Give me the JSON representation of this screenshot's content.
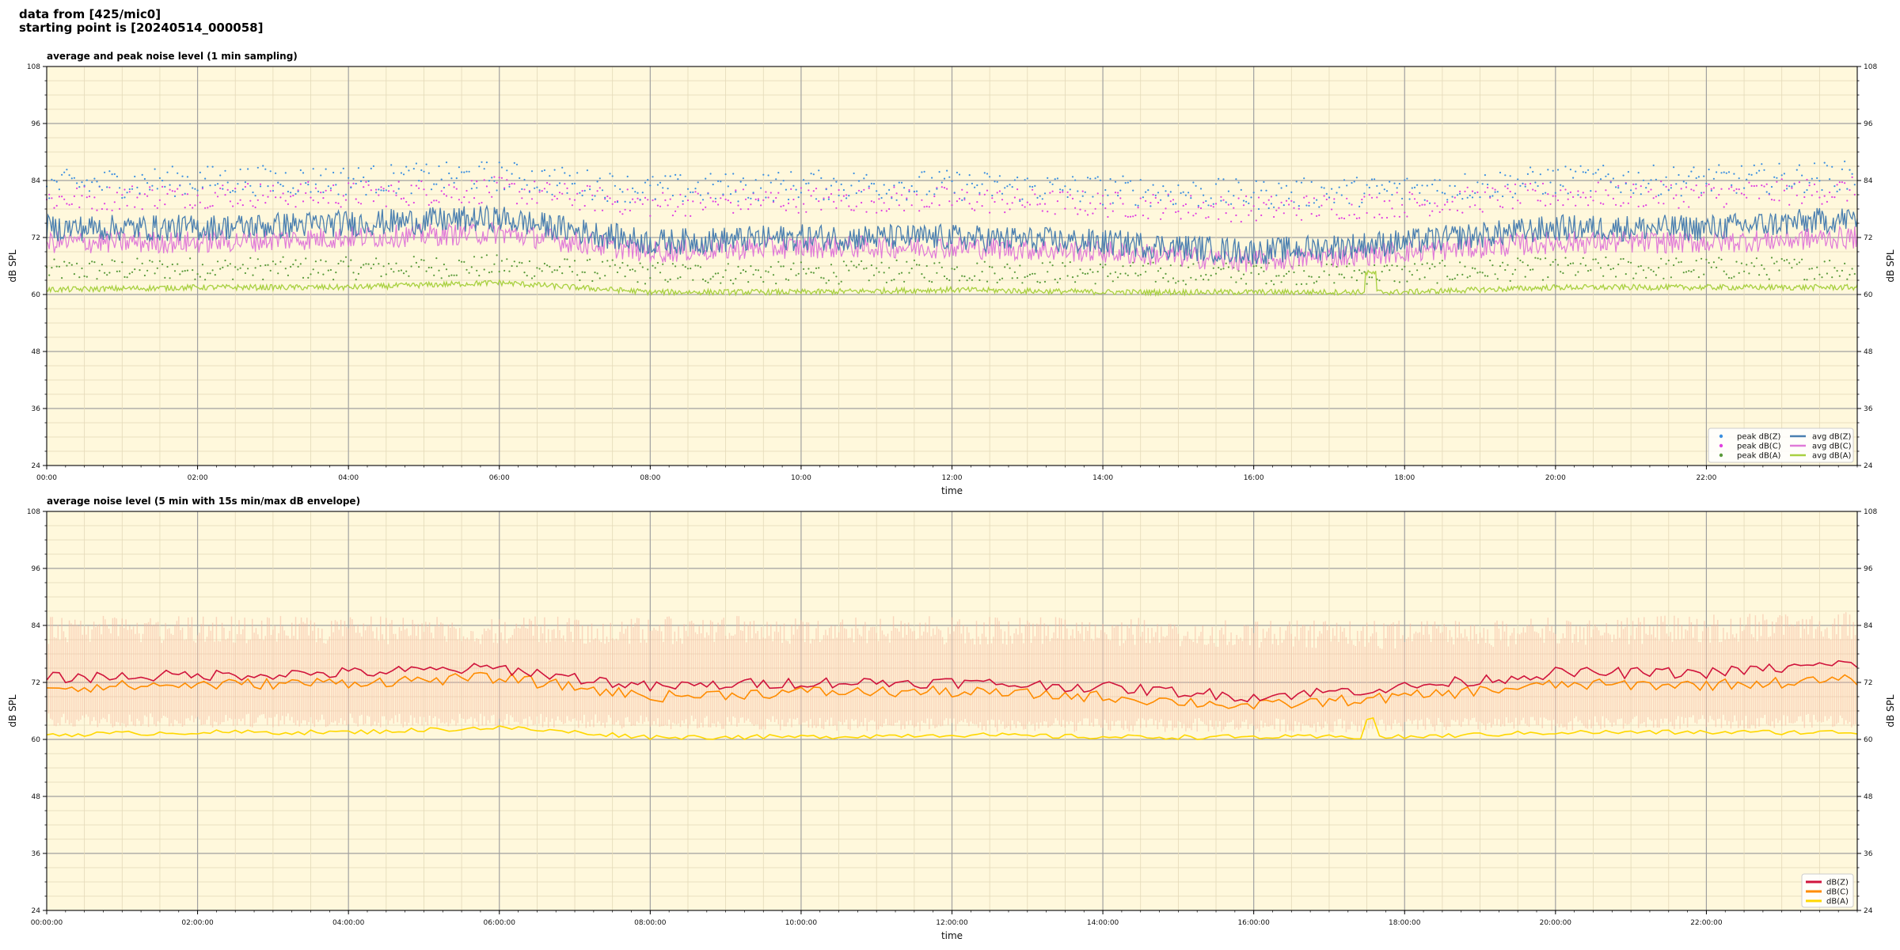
{
  "header": {
    "line1": "data from [425/mic0]",
    "line2": "starting point is [20240514_000058]"
  },
  "colors": {
    "plot_background": "#fff8dc",
    "peak_z": "#3b8fe0",
    "peak_c": "#e040e0",
    "peak_a": "#5a9a3a",
    "avg_z": "#4a7fb0",
    "avg_c": "#e07ad8",
    "avg_a": "#a8d040",
    "dbz": "#d0143c",
    "dbc": "#ff8c00",
    "dba": "#ffd700",
    "envelope": "#f5b8a0"
  },
  "chart_data": [
    {
      "type": "line",
      "title": "average and peak noise level (1 min sampling)",
      "xlabel": "time",
      "ylabel": "dB SPL",
      "ylim": [
        24,
        108
      ],
      "yticks": [
        "24",
        "36",
        "48",
        "60",
        "72",
        "84",
        "96",
        "108"
      ],
      "xlim_hours": [
        0,
        24
      ],
      "xticks": [
        "00:00",
        "02:00",
        "04:00",
        "06:00",
        "08:00",
        "10:00",
        "12:00",
        "14:00",
        "16:00",
        "18:00",
        "20:00",
        "22:00"
      ],
      "grid": true,
      "legend_position": "bottom-right",
      "legend": [
        "peak dB(Z)",
        "peak dB(C)",
        "peak dB(A)",
        "avg dB(Z)",
        "avg dB(C)",
        "avg dB(A)"
      ],
      "series": [
        {
          "name": "avg dB(Z)",
          "x_hours": [
            0,
            2,
            4,
            6,
            8,
            10,
            12,
            14,
            16,
            18,
            20,
            22,
            24
          ],
          "values": [
            74,
            74,
            75,
            76,
            71,
            72,
            72,
            71,
            69,
            71,
            74,
            74,
            76
          ]
        },
        {
          "name": "avg dB(C)",
          "x_hours": [
            0,
            2,
            4,
            6,
            8,
            10,
            12,
            14,
            16,
            18,
            20,
            22,
            24
          ],
          "values": [
            71,
            71,
            72,
            73,
            69,
            70,
            70,
            69,
            67,
            69,
            71,
            71,
            72
          ]
        },
        {
          "name": "avg dB(A)",
          "x_hours": [
            0,
            2,
            4,
            6,
            8,
            10,
            12,
            14,
            16,
            18,
            20,
            22,
            24
          ],
          "values": [
            61,
            61.5,
            61.5,
            62.5,
            60.5,
            60.5,
            61,
            60.5,
            60.5,
            60.5,
            61.5,
            61.5,
            61.5
          ]
        },
        {
          "name": "peak dB(Z)",
          "x_hours": [
            0,
            2,
            4,
            6,
            8,
            10,
            12,
            14,
            16,
            18,
            20,
            22,
            24
          ],
          "values": [
            83,
            84,
            84,
            85,
            82,
            83,
            83,
            82,
            81,
            82,
            84,
            84,
            85
          ]
        },
        {
          "name": "peak dB(C)",
          "x_hours": [
            0,
            2,
            4,
            6,
            8,
            10,
            12,
            14,
            16,
            18,
            20,
            22,
            24
          ],
          "values": [
            80,
            81,
            81,
            82,
            79,
            80,
            80,
            79,
            78,
            79,
            81,
            81,
            82
          ]
        },
        {
          "name": "peak dB(A)",
          "x_hours": [
            0,
            2,
            4,
            6,
            8,
            10,
            12,
            14,
            16,
            18,
            20,
            22,
            24
          ],
          "values": [
            65,
            65.5,
            65.5,
            66,
            64.5,
            64.5,
            65,
            64.5,
            64.5,
            64.5,
            65.5,
            65.5,
            65.5
          ]
        }
      ]
    },
    {
      "type": "line",
      "title": "average noise level (5 min with 15s min/max dB envelope)",
      "xlabel": "time",
      "ylabel": "dB SPL",
      "ylim": [
        24,
        108
      ],
      "yticks": [
        "24",
        "36",
        "48",
        "60",
        "72",
        "84",
        "96",
        "108"
      ],
      "xlim_hours": [
        0,
        24
      ],
      "xticks": [
        "00:00:00",
        "02:00:00",
        "04:00:00",
        "06:00:00",
        "08:00:00",
        "10:00:00",
        "12:00:00",
        "14:00:00",
        "16:00:00",
        "18:00:00",
        "20:00:00",
        "22:00:00"
      ],
      "grid": true,
      "legend_position": "bottom-right",
      "legend": [
        "dB(Z)",
        "dB(C)",
        "dB(A)"
      ],
      "series": [
        {
          "name": "dB(Z)",
          "x_hours": [
            0,
            2,
            4,
            6,
            8,
            10,
            12,
            14,
            16,
            18,
            20,
            22,
            24
          ],
          "values": [
            73,
            73.5,
            74,
            75,
            71,
            72,
            72,
            71,
            69,
            71,
            74,
            74,
            76
          ]
        },
        {
          "name": "dB(C)",
          "x_hours": [
            0,
            2,
            4,
            6,
            8,
            10,
            12,
            14,
            16,
            18,
            20,
            22,
            24
          ],
          "values": [
            71,
            71.5,
            72,
            73,
            69,
            70,
            70,
            69,
            67,
            69,
            71.5,
            71.5,
            72.5
          ]
        },
        {
          "name": "dB(A)",
          "x_hours": [
            0,
            2,
            4,
            6,
            8,
            10,
            12,
            14,
            16,
            18,
            20,
            22,
            24
          ],
          "values": [
            61,
            61.5,
            61.5,
            62.5,
            60.5,
            60.5,
            61,
            60.5,
            60.5,
            60.5,
            61.5,
            61.5,
            61.5
          ]
        }
      ],
      "envelope": {
        "x_hours": [
          0,
          6,
          12,
          18,
          24
        ],
        "min": [
          64,
          64,
          63,
          63,
          64
        ],
        "max": [
          86,
          86,
          86,
          85,
          87
        ]
      }
    }
  ]
}
